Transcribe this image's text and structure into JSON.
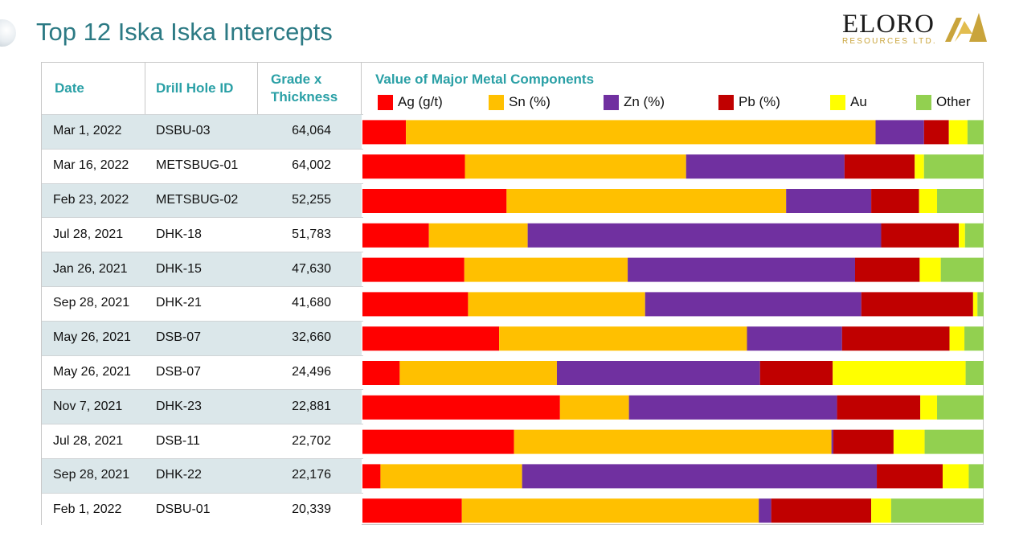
{
  "header": {
    "title": "Top 12 Iska Iska Intercepts",
    "logo": {
      "word": "ELORO",
      "sub": "RESOURCES LTD."
    }
  },
  "table": {
    "col_date": "Date",
    "col_hole": "Drill Hole ID",
    "col_grade_line1": "Grade x",
    "col_grade_line2": "Thickness"
  },
  "chart_data": {
    "type": "bar",
    "orientation": "horizontal",
    "stacked": true,
    "normalized_percent": true,
    "title": "Value of Major Metal Components",
    "legend_position": "top",
    "categories": [
      "Mar 1, 2022",
      "Mar 16, 2022",
      "Feb 23, 2022",
      "Jul 28, 2021",
      "Jan 26, 2021",
      "Sep 28, 2021",
      "May 26, 2021",
      "May 26, 2021",
      "Nov 7, 2021",
      "Jul 28, 2021",
      "Sep 28, 2021",
      "Feb 1, 2022"
    ],
    "rows": [
      {
        "date": "Mar 1, 2022",
        "hole": "DSBU-03",
        "grade": "64,064"
      },
      {
        "date": "Mar 16, 2022",
        "hole": "METSBUG-01",
        "grade": "64,002"
      },
      {
        "date": "Feb 23, 2022",
        "hole": "METSBUG-02",
        "grade": "52,255"
      },
      {
        "date": "Jul 28, 2021",
        "hole": "DHK-18",
        "grade": "51,783"
      },
      {
        "date": "Jan 26, 2021",
        "hole": "DHK-15",
        "grade": "47,630"
      },
      {
        "date": "Sep 28, 2021",
        "hole": "DHK-21",
        "grade": "41,680"
      },
      {
        "date": "May 26, 2021",
        "hole": "DSB-07",
        "grade": "32,660"
      },
      {
        "date": "May 26, 2021",
        "hole": "DSB-07",
        "grade": "24,496"
      },
      {
        "date": "Nov 7, 2021",
        "hole": "DHK-23",
        "grade": "22,881"
      },
      {
        "date": "Jul 28, 2021",
        "hole": "DSB-11",
        "grade": "22,702"
      },
      {
        "date": "Sep 28, 2021",
        "hole": "DHK-22",
        "grade": "22,176"
      },
      {
        "date": "Feb 1, 2022",
        "hole": "DSBU-01",
        "grade": "20,339"
      }
    ],
    "series": [
      {
        "name": "Ag (g/t)",
        "color": "#ff0000",
        "values": [
          7.0,
          16.5,
          23.2,
          10.7,
          16.4,
          17.0,
          22.0,
          6.0,
          31.8,
          24.4,
          2.9,
          16.0
        ]
      },
      {
        "name": "Sn (%)",
        "color": "#ffc000",
        "values": [
          75.6,
          35.6,
          45.0,
          15.9,
          26.3,
          28.5,
          39.9,
          25.3,
          11.1,
          51.1,
          22.8,
          47.8
        ]
      },
      {
        "name": "Zn (%)",
        "color": "#7030a0",
        "values": [
          7.8,
          25.5,
          13.7,
          56.9,
          36.6,
          34.8,
          15.3,
          32.7,
          33.5,
          0.3,
          57.1,
          2.0
        ]
      },
      {
        "name": "Pb (%)",
        "color": "#c00000",
        "values": [
          4.0,
          11.3,
          7.7,
          12.5,
          10.4,
          18.0,
          17.3,
          11.7,
          13.4,
          9.7,
          10.6,
          16.1
        ]
      },
      {
        "name": "Au",
        "color": "#ffff00",
        "values": [
          3.0,
          1.5,
          2.9,
          1.0,
          3.4,
          0.7,
          2.4,
          21.4,
          2.7,
          5.0,
          4.2,
          3.2
        ]
      },
      {
        "name": "Other",
        "color": "#92d050",
        "values": [
          2.6,
          9.6,
          7.5,
          3.0,
          6.9,
          1.0,
          3.1,
          2.9,
          7.5,
          9.5,
          2.4,
          14.9
        ]
      }
    ]
  }
}
